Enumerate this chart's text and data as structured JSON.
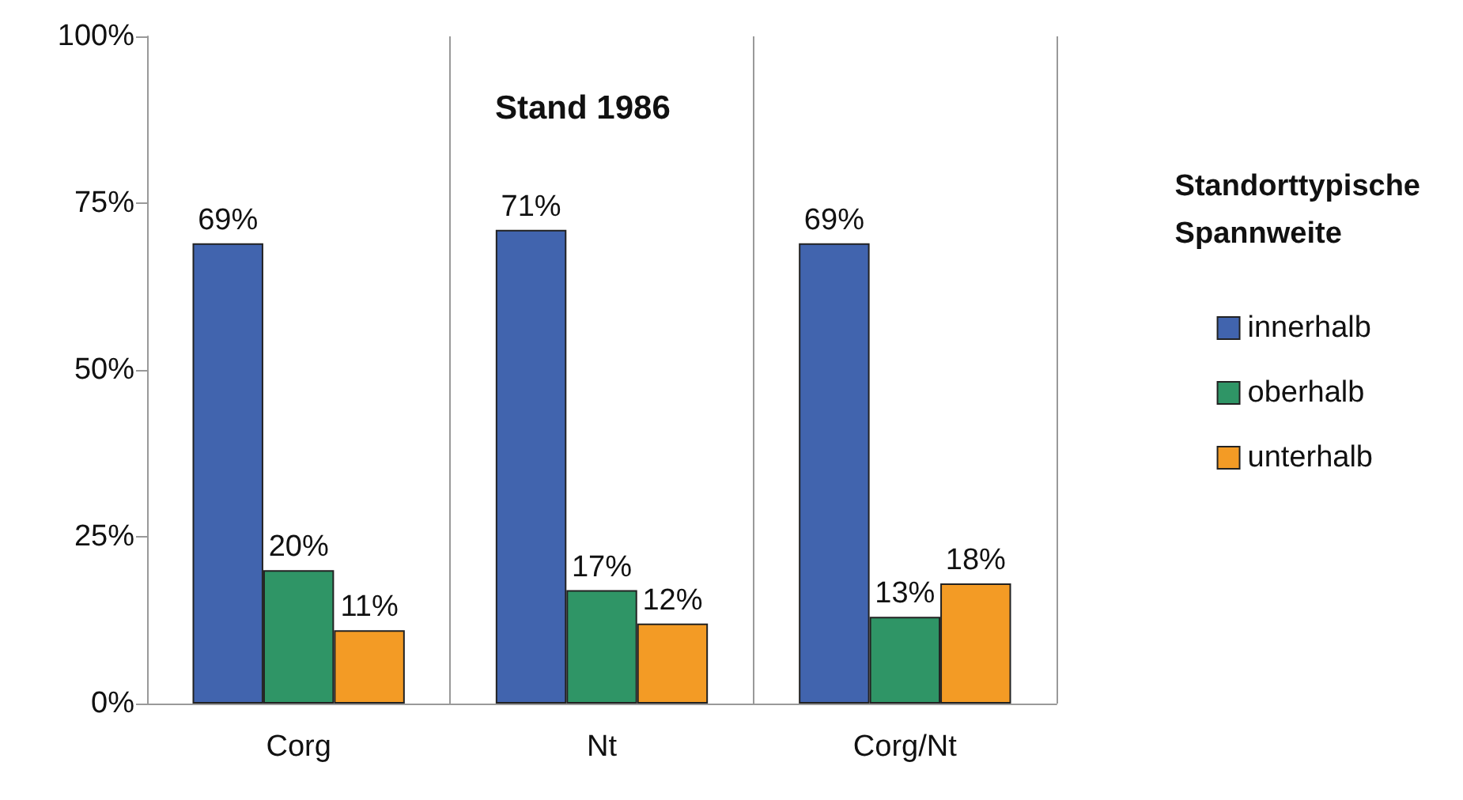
{
  "chart_data": {
    "type": "bar",
    "title": "Stand 1986",
    "legend_title": "Standorttypische Spannweite",
    "categories": [
      "Corg",
      "Nt",
      "Corg/Nt"
    ],
    "series": [
      {
        "name": "innerhalb",
        "color": "#4164ae",
        "values": [
          69,
          71,
          69
        ],
        "value_labels": [
          "69%",
          "71%",
          "69%"
        ]
      },
      {
        "name": "oberhalb",
        "color": "#2f9566",
        "values": [
          20,
          17,
          13
        ],
        "value_labels": [
          "20%",
          "17%",
          "13%"
        ]
      },
      {
        "name": "unterhalb",
        "color": "#f39b25",
        "values": [
          11,
          12,
          18
        ],
        "value_labels": [
          "11%",
          "12%",
          "18%"
        ]
      }
    ],
    "ylim": [
      0,
      100
    ],
    "yticks": [
      {
        "value": 0,
        "label": "0%"
      },
      {
        "value": 25,
        "label": "25%"
      },
      {
        "value": 50,
        "label": "50%"
      },
      {
        "value": 75,
        "label": "75%"
      },
      {
        "value": 100,
        "label": "100%"
      }
    ],
    "grid": "x",
    "legend": "right"
  }
}
